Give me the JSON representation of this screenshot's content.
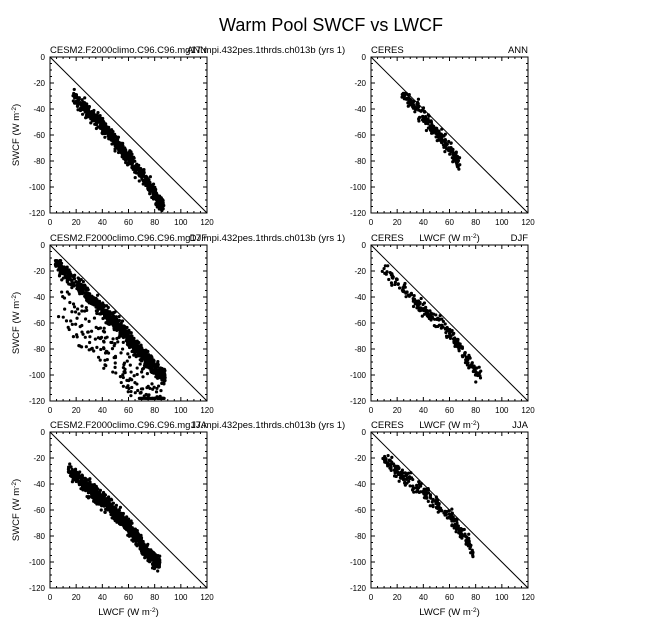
{
  "figure": {
    "title": "Warm Pool SWCF vs LWCF"
  },
  "axes": {
    "xlabel": "LWCF (W m",
    "ylabel": "SWCF (W m",
    "unit_exponent": "-2",
    "unit_close": ")",
    "xlim": [
      0,
      120
    ],
    "ylim": [
      -120,
      0
    ],
    "xticks": [
      "0",
      "20",
      "40",
      "60",
      "80",
      "100",
      "120"
    ],
    "yticks": [
      "0",
      "-20",
      "-40",
      "-60",
      "-80",
      "-100",
      "-120"
    ],
    "reference_line": "y = -x"
  },
  "chart_data": [
    {
      "type": "scatter",
      "row": 0,
      "col": 0,
      "left_label": "CESM2.F2000climo.C96.C96.mg17.mpi.432pes.1thrds.ch013b (yrs 1)",
      "right_label": "ANN",
      "x_range": [
        17,
        87
      ],
      "y_range": [
        -118,
        -24
      ],
      "n_points": 650,
      "x": [
        18,
        25,
        32,
        40,
        48,
        55,
        62,
        70,
        78,
        86
      ],
      "y": [
        -30,
        -38,
        -45,
        -53,
        -62,
        -72,
        -80,
        -90,
        -102,
        -115
      ]
    },
    {
      "type": "scatter",
      "row": 0,
      "col": 1,
      "left_label": "CERES",
      "right_label": "ANN",
      "x_range": [
        23,
        68
      ],
      "y_range": [
        -88,
        -28
      ],
      "n_points": 220,
      "x": [
        24,
        30,
        36,
        42,
        48,
        54,
        60,
        66
      ],
      "y": [
        -29,
        -35,
        -40,
        -48,
        -55,
        -62,
        -70,
        -80
      ]
    },
    {
      "type": "scatter",
      "row": 1,
      "col": 0,
      "left_label": "CESM2.F2000climo.C96.C96.mg17.mpi.432pes.1thrds.ch013b (yrs 1)",
      "right_label": "DJF",
      "x_range": [
        4,
        88
      ],
      "y_range": [
        -118,
        -12
      ],
      "n_points": 1100,
      "x": [
        6,
        15,
        25,
        35,
        45,
        55,
        65,
        75,
        85
      ],
      "y": [
        -15,
        -25,
        -35,
        -45,
        -55,
        -65,
        -78,
        -88,
        -100
      ]
    },
    {
      "type": "scatter",
      "row": 1,
      "col": 1,
      "left_label": "CERES",
      "right_label": "DJF",
      "x_range": [
        8,
        84
      ],
      "y_range": [
        -110,
        -16
      ],
      "n_points": 230,
      "x": [
        10,
        20,
        30,
        40,
        50,
        60,
        70,
        80
      ],
      "y": [
        -20,
        -30,
        -40,
        -48,
        -58,
        -68,
        -82,
        -98
      ]
    },
    {
      "type": "scatter",
      "row": 2,
      "col": 0,
      "left_label": "CESM2.F2000climo.C96.C96.mg17.mpi.432pes.1thrds.ch013b (yrs 1)",
      "right_label": "JJA",
      "x_range": [
        14,
        84
      ],
      "y_range": [
        -118,
        -24
      ],
      "n_points": 900,
      "x": [
        16,
        24,
        32,
        40,
        48,
        56,
        64,
        72,
        80
      ],
      "y": [
        -30,
        -38,
        -45,
        -52,
        -60,
        -68,
        -78,
        -90,
        -100
      ]
    },
    {
      "type": "scatter",
      "row": 2,
      "col": 1,
      "left_label": "CERES",
      "right_label": "JJA",
      "x_range": [
        9,
        78
      ],
      "y_range": [
        -96,
        -18
      ],
      "n_points": 260,
      "x": [
        10,
        20,
        30,
        40,
        50,
        60,
        70,
        78
      ],
      "y": [
        -20,
        -30,
        -38,
        -46,
        -55,
        -65,
        -78,
        -92
      ]
    }
  ]
}
